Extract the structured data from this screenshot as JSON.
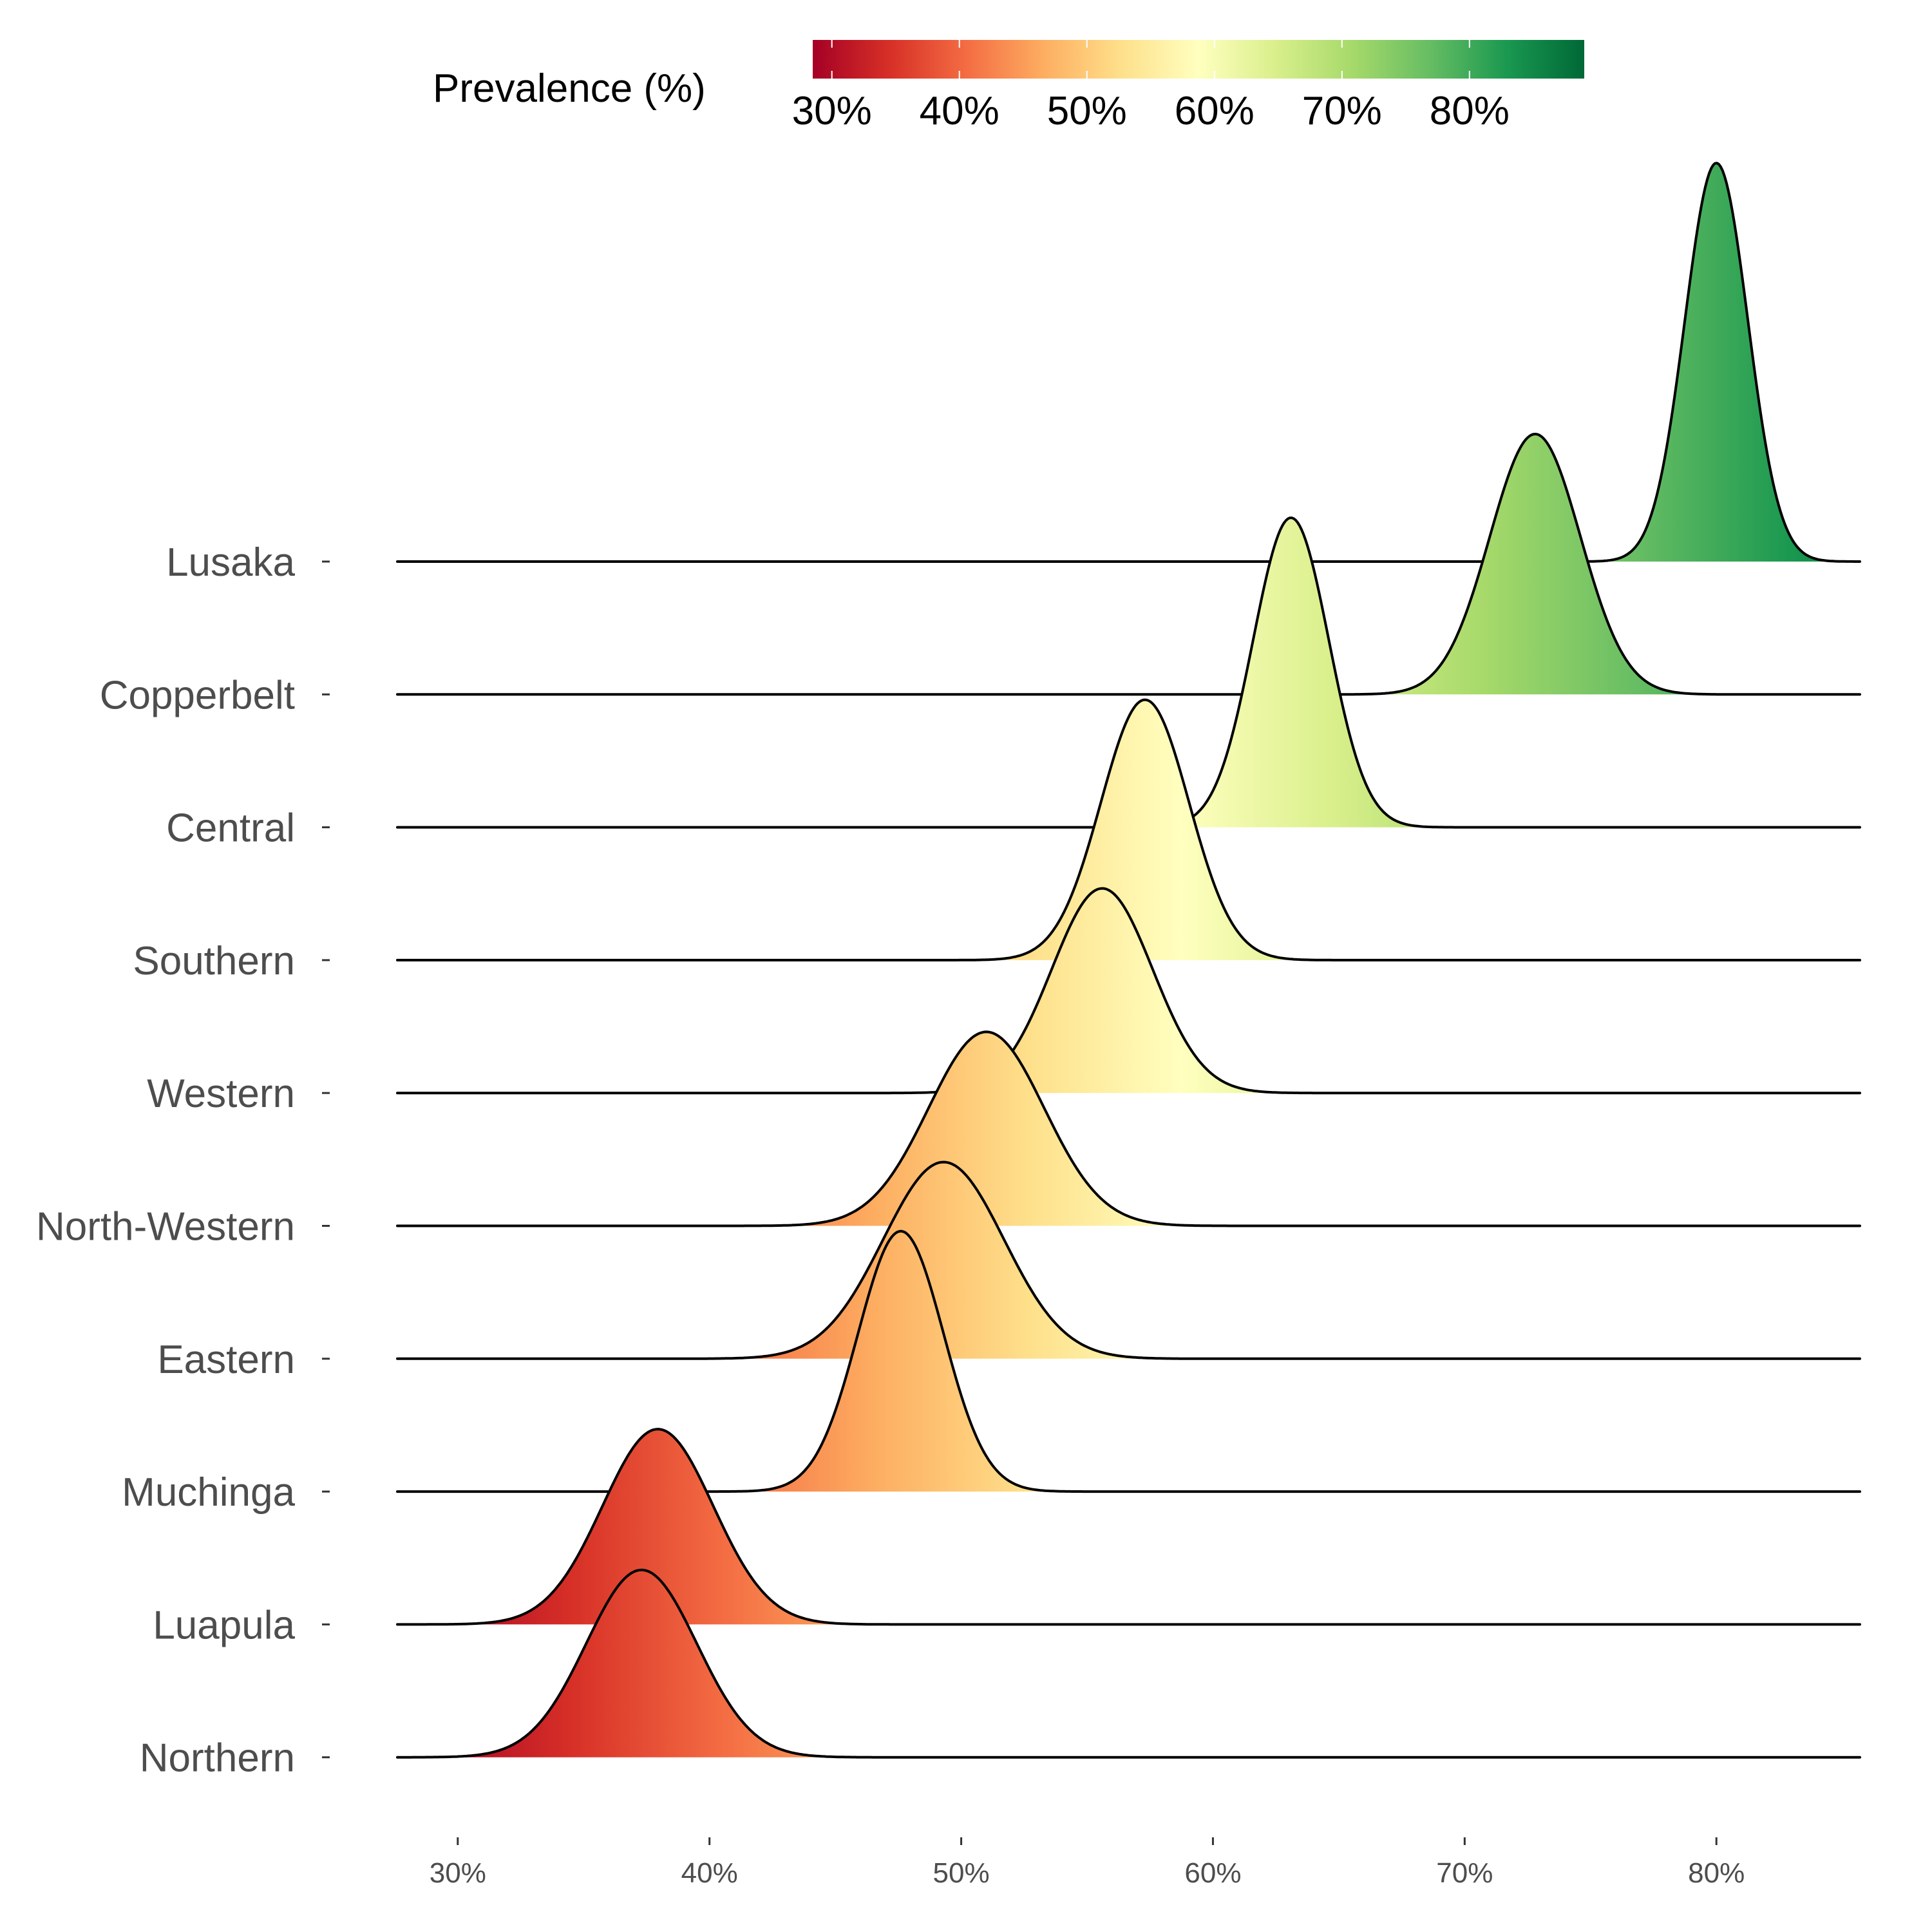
{
  "chart_data": {
    "type": "ridgeline",
    "title": "",
    "xlabel": "",
    "ylabel": "",
    "xlim": [
      27.6,
      85.7
    ],
    "x_ticks": [
      30,
      40,
      50,
      60,
      70,
      80
    ],
    "x_tick_labels": [
      "30%",
      "40%",
      "50%",
      "60%",
      "70%",
      "80%"
    ],
    "grid": false,
    "legend": {
      "title": "Prevalence (%)",
      "placement": "top",
      "type": "colorbar",
      "range": [
        28.5,
        89
      ],
      "ticks": [
        30,
        40,
        50,
        60,
        70,
        80
      ],
      "tick_labels": [
        "30%",
        "40%",
        "50%",
        "60%",
        "70%",
        "80%"
      ],
      "palette": [
        "#a50026",
        "#d73027",
        "#f46d43",
        "#fdae61",
        "#fee08b",
        "#ffffbf",
        "#d9ef8b",
        "#a6d96a",
        "#66bd63",
        "#1a9850",
        "#006837"
      ]
    },
    "series": [
      {
        "name": "Lusaka",
        "mode": 80.0,
        "sd": 1.25,
        "peak_height_rows": 3.0
      },
      {
        "name": "Copperbelt",
        "mode": 72.8,
        "sd": 1.8,
        "peak_height_rows": 1.96
      },
      {
        "name": "Central",
        "mode": 63.1,
        "sd": 1.5,
        "peak_height_rows": 2.33
      },
      {
        "name": "Southern",
        "mode": 57.3,
        "sd": 1.75,
        "peak_height_rows": 1.96
      },
      {
        "name": "Western",
        "mode": 55.6,
        "sd": 2.0,
        "peak_height_rows": 1.54
      },
      {
        "name": "North-Western",
        "mode": 51.0,
        "sd": 2.3,
        "peak_height_rows": 1.46
      },
      {
        "name": "Eastern",
        "mode": 49.3,
        "sd": 2.4,
        "peak_height_rows": 1.48
      },
      {
        "name": "Muchinga",
        "mode": 47.6,
        "sd": 1.7,
        "peak_height_rows": 1.96
      },
      {
        "name": "Luapula",
        "mode": 37.95,
        "sd": 2.2,
        "peak_height_rows": 1.47
      },
      {
        "name": "Northern",
        "mode": 37.3,
        "sd": 2.2,
        "peak_height_rows": 1.41
      }
    ]
  }
}
